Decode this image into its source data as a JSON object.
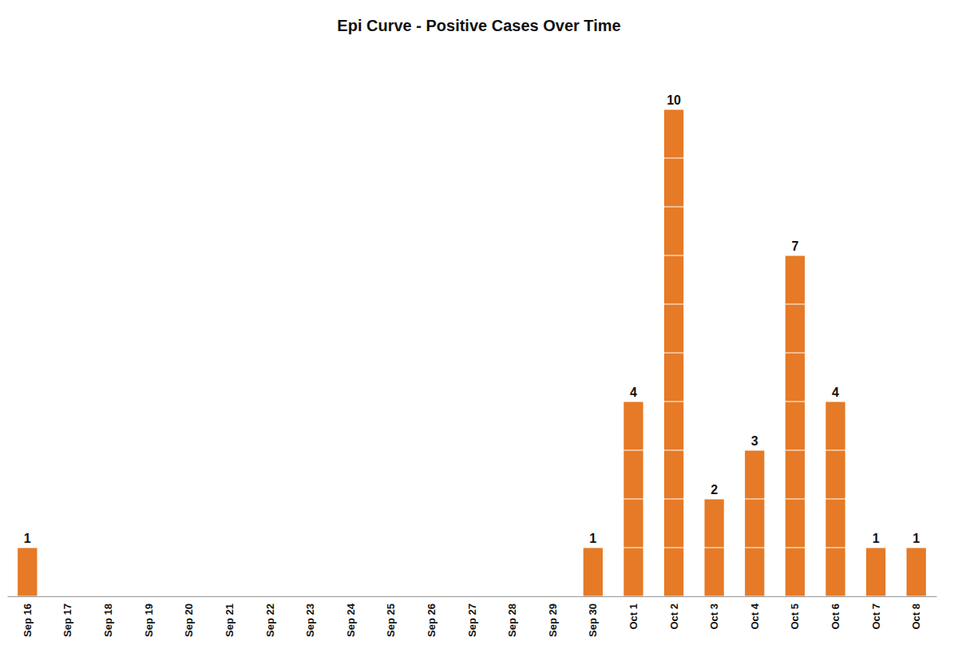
{
  "chart_data": {
    "type": "bar",
    "title": "Epi Curve - Positive Cases Over Time",
    "categories": [
      "Sep 16",
      "Sep 17",
      "Sep 18",
      "Sep 19",
      "Sep 20",
      "Sep 21",
      "Sep 22",
      "Sep 23",
      "Sep 24",
      "Sep 25",
      "Sep 26",
      "Sep 27",
      "Sep 28",
      "Sep 29",
      "Sep 30",
      "Oct 1",
      "Oct 2",
      "Oct 3",
      "Oct 4",
      "Oct 5",
      "Oct 6",
      "Oct 7",
      "Oct 8"
    ],
    "values": [
      1,
      null,
      null,
      null,
      null,
      null,
      null,
      null,
      null,
      null,
      null,
      null,
      null,
      null,
      1,
      4,
      10,
      2,
      3,
      7,
      4,
      1,
      1
    ],
    "color": "#e67a26",
    "ylim": [
      0,
      10
    ],
    "yticks": [
      0,
      1,
      2,
      3,
      4,
      5,
      6,
      7,
      8,
      9,
      10
    ],
    "grid": true,
    "data_labels": true,
    "tick_labels": "x"
  }
}
